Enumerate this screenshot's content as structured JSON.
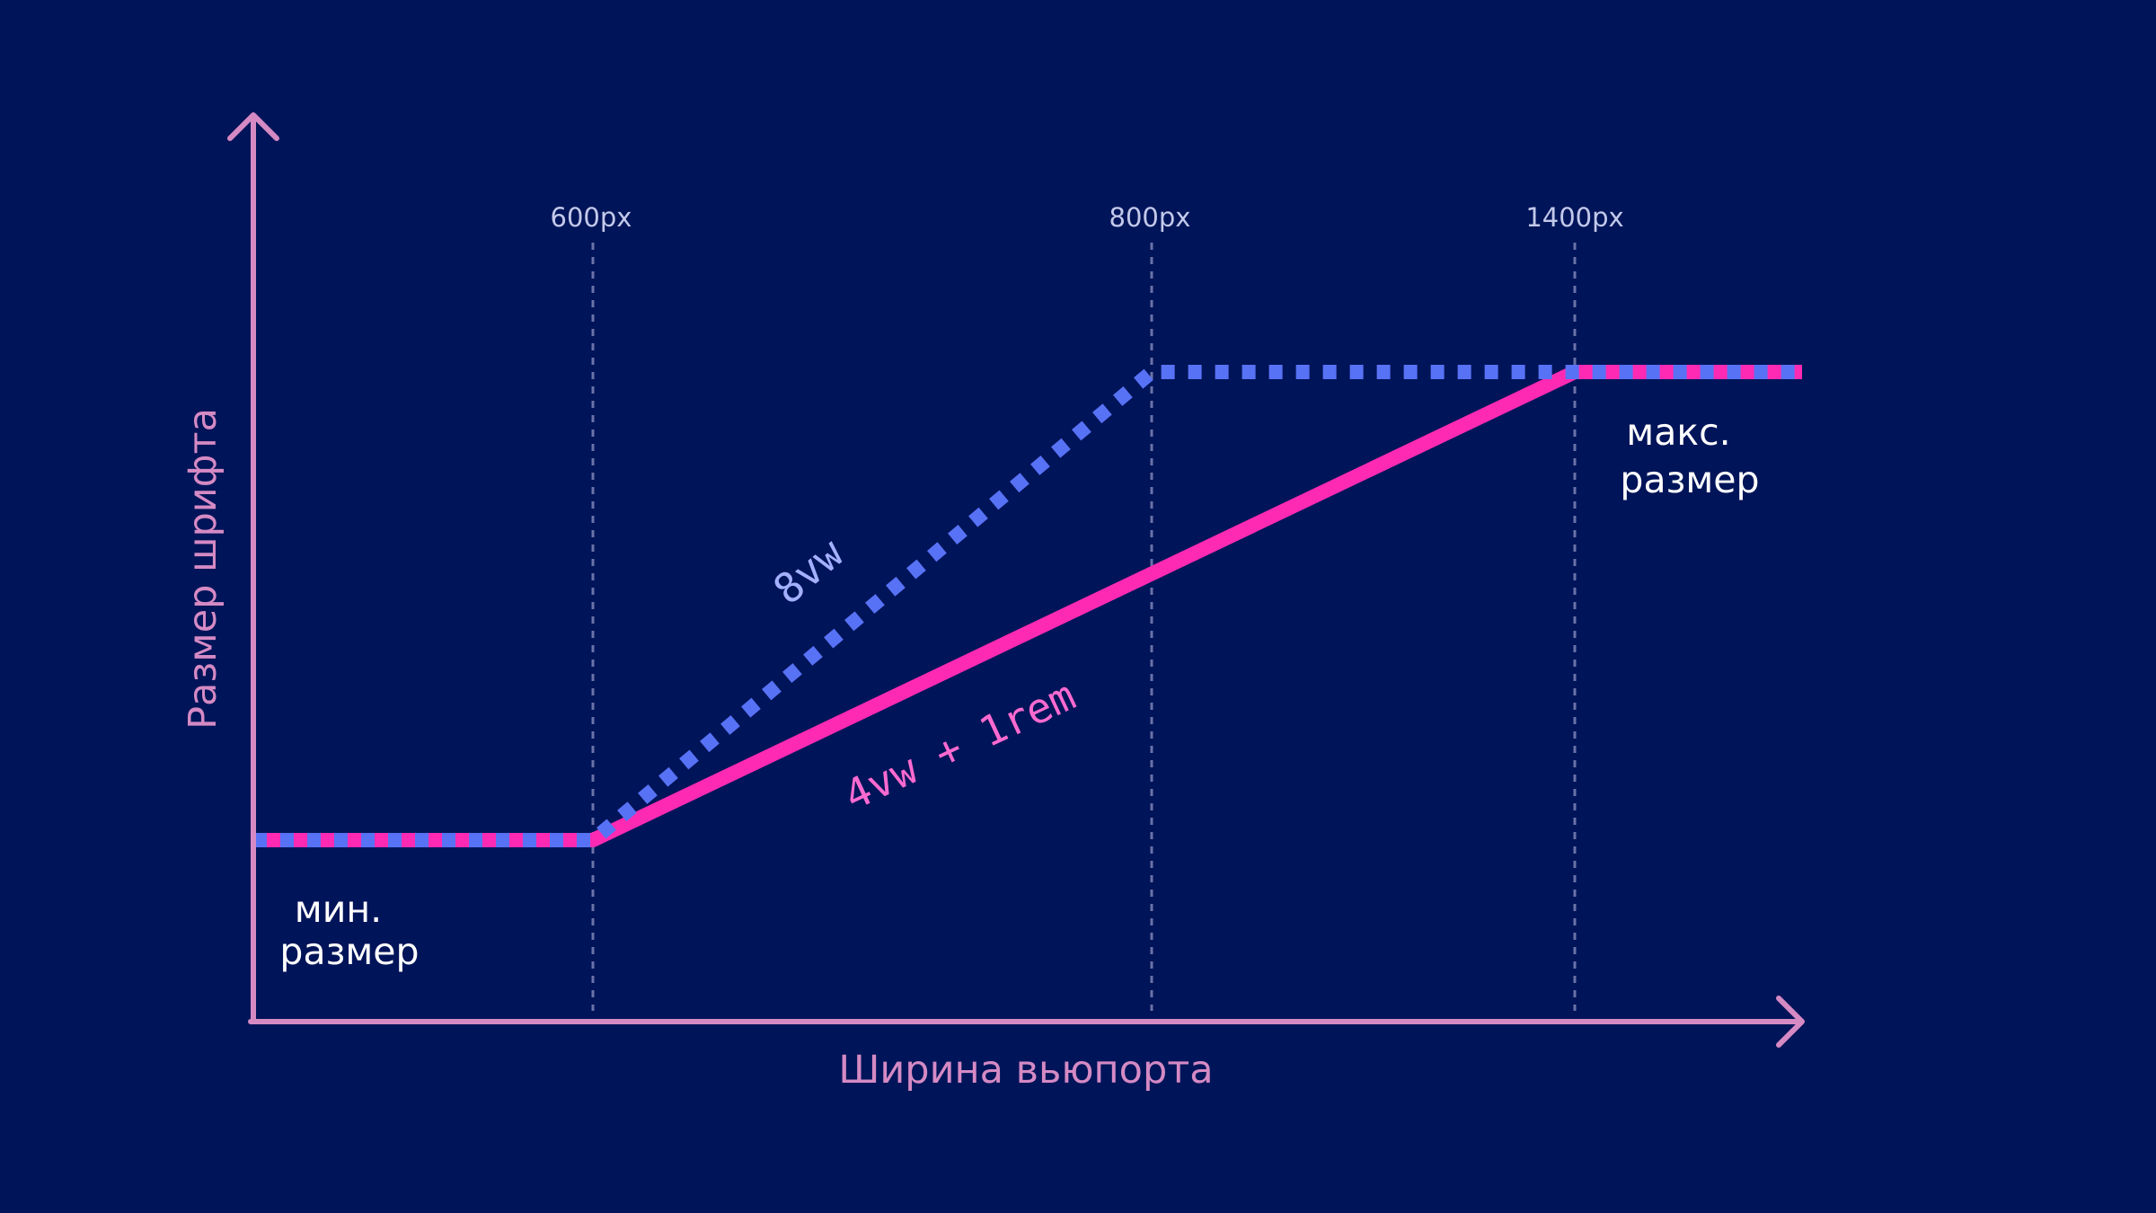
{
  "diagram": {
    "y_axis_label": "Размер шрифта",
    "x_axis_label": "Ширина вьюпорта",
    "breakpoints": [
      "600px",
      "800px",
      "1400px"
    ],
    "min_label": [
      "мин.",
      "размер"
    ],
    "max_label": [
      "макс.",
      "размер"
    ],
    "series": [
      {
        "label": "8vw",
        "color": "#5872f5"
      },
      {
        "label": "4vw + 1rem",
        "color": "#ff2ab3"
      }
    ],
    "colors": {
      "background": "#001459",
      "axis": "#d58ac4",
      "guide": "#6a72a8"
    }
  }
}
